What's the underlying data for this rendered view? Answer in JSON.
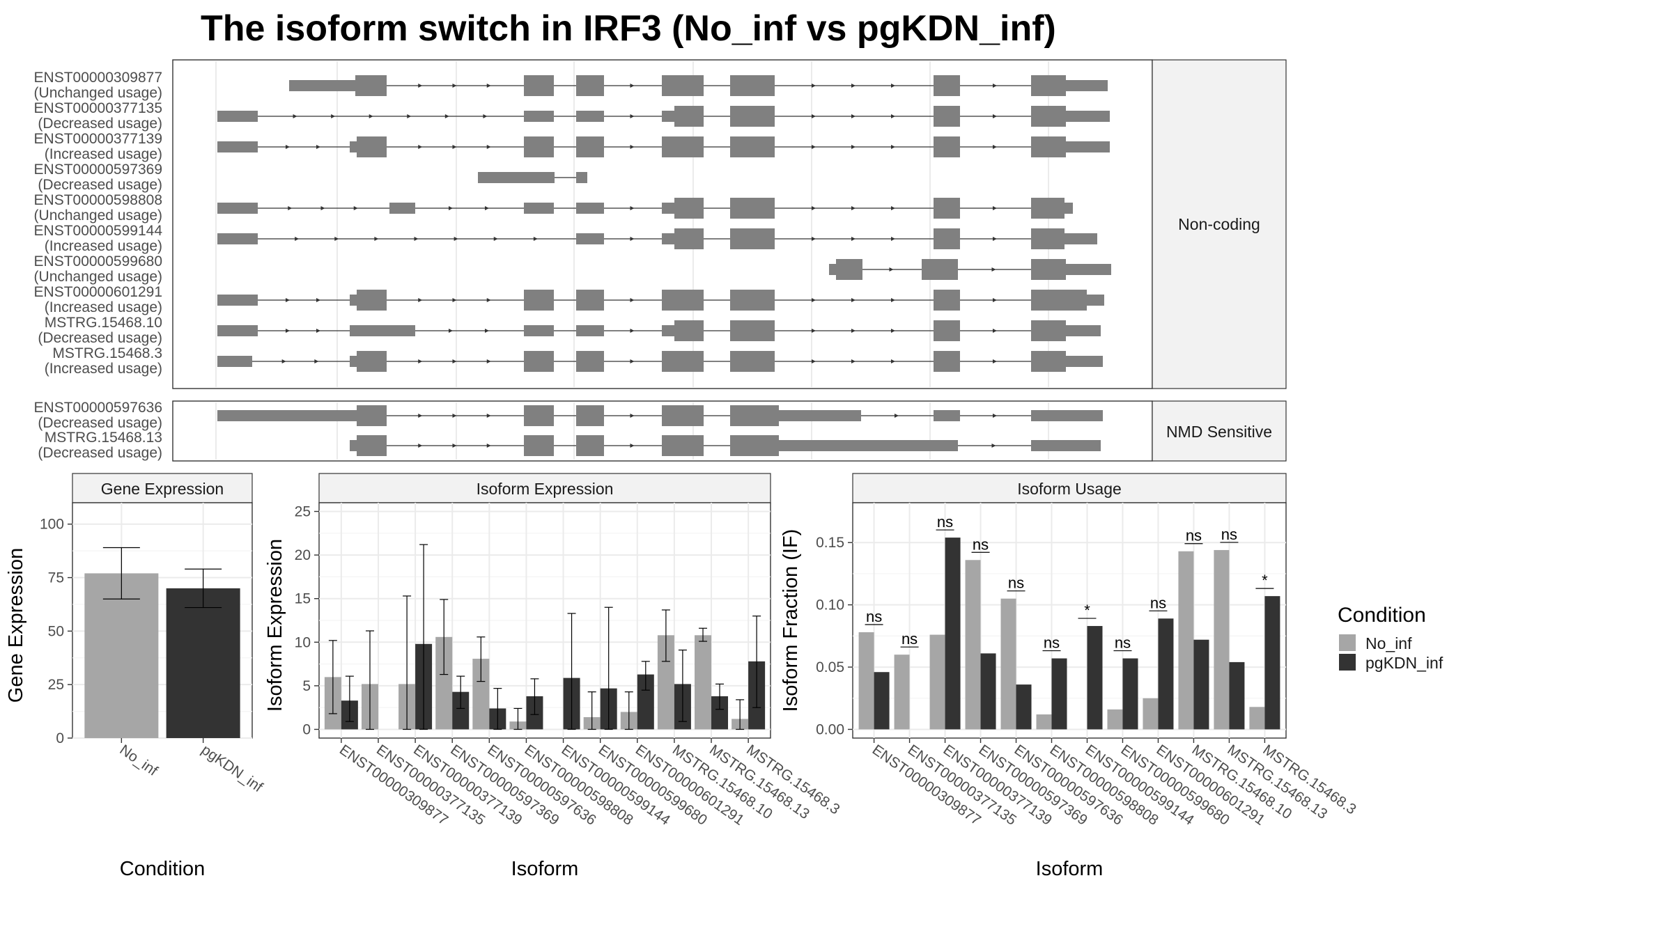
{
  "title": "The isoform switch in IRF3 (No_inf vs pgKDN_inf)",
  "colors": {
    "No_inf": "#a6a6a6",
    "pgKDN_inf": "#333333",
    "exon": "#808080"
  },
  "legend": {
    "title": "Condition",
    "items": [
      "No_inf",
      "pgKDN_inf"
    ]
  },
  "transcripts": {
    "facets": [
      "Non-coding",
      "NMD Sensitive"
    ],
    "tracks": [
      {
        "id": "ENST00000309877",
        "usage": "(Unchanged usage)",
        "facet": 0
      },
      {
        "id": "ENST00000377135",
        "usage": "(Decreased usage)",
        "facet": 0
      },
      {
        "id": "ENST00000377139",
        "usage": "(Increased usage)",
        "facet": 0
      },
      {
        "id": "ENST00000597369",
        "usage": "(Decreased usage)",
        "facet": 0
      },
      {
        "id": "ENST00000598808",
        "usage": "(Unchanged usage)",
        "facet": 0
      },
      {
        "id": "ENST00000599144",
        "usage": "(Increased usage)",
        "facet": 0
      },
      {
        "id": "ENST00000599680",
        "usage": "(Unchanged usage)",
        "facet": 0
      },
      {
        "id": "ENST00000601291",
        "usage": "(Increased usage)",
        "facet": 0
      },
      {
        "id": "MSTRG.15468.10",
        "usage": "(Decreased usage)",
        "facet": 0
      },
      {
        "id": "MSTRG.15468.3",
        "usage": "(Increased usage)",
        "facet": 0
      },
      {
        "id": "ENST00000597636",
        "usage": "(Decreased usage)",
        "facet": 1
      },
      {
        "id": "MSTRG.15468.13",
        "usage": "(Decreased usage)",
        "facet": 1
      }
    ]
  },
  "chart_data": [
    {
      "type": "bar",
      "title": "Gene Expression",
      "xlabel": "Condition",
      "ylabel": "Gene Expression",
      "ylim": [
        0,
        110
      ],
      "yticks": [
        0,
        25,
        50,
        75,
        100
      ],
      "categories": [
        "No_inf",
        "pgKDN_inf"
      ],
      "values": [
        77,
        70
      ],
      "errors": [
        [
          65,
          89
        ],
        [
          61,
          79
        ]
      ]
    },
    {
      "type": "bar",
      "title": "Isoform Expression",
      "xlabel": "Isoform",
      "ylabel": "Isoform Expression",
      "ylim": [
        -1,
        26
      ],
      "yticks": [
        0,
        5,
        10,
        15,
        20,
        25
      ],
      "categories": [
        "ENST00000309877",
        "ENST00000377135",
        "ENST00000377139",
        "ENST00000597369",
        "ENST00000597636",
        "ENST00000598808",
        "ENST00000599144",
        "ENST00000599680",
        "ENST00000601291",
        "MSTRG.15468.10",
        "MSTRG.15468.13",
        "MSTRG.15468.3"
      ],
      "series": [
        {
          "name": "No_inf",
          "values": [
            6.0,
            5.2,
            5.2,
            10.6,
            8.1,
            0.9,
            0.0,
            1.4,
            2.0,
            10.8,
            10.8,
            1.2
          ],
          "errors": [
            [
              1.8,
              10.2
            ],
            [
              0.0,
              11.3
            ],
            [
              0.0,
              15.3
            ],
            [
              6.3,
              14.9
            ],
            [
              5.5,
              10.6
            ],
            [
              0.0,
              2.4
            ],
            [
              0.0,
              0.0
            ],
            [
              0.0,
              4.3
            ],
            [
              0.0,
              4.3
            ],
            [
              7.8,
              13.7
            ],
            [
              10.1,
              11.6
            ],
            [
              0.0,
              3.4
            ]
          ]
        },
        {
          "name": "pgKDN_inf",
          "values": [
            3.3,
            0.0,
            9.8,
            4.3,
            2.4,
            3.8,
            5.9,
            4.7,
            6.3,
            5.2,
            3.8,
            7.8
          ],
          "errors": [
            [
              0.9,
              6.1
            ],
            [
              0.0,
              0.0
            ],
            [
              0.0,
              21.2
            ],
            [
              2.4,
              6.1
            ],
            [
              0.0,
              4.7
            ],
            [
              1.7,
              5.8
            ],
            [
              0.0,
              13.3
            ],
            [
              0.0,
              14.0
            ],
            [
              4.5,
              7.8
            ],
            [
              0.9,
              9.1
            ],
            [
              2.3,
              5.2
            ],
            [
              2.5,
              13.0
            ]
          ]
        }
      ]
    },
    {
      "type": "bar",
      "title": "Isoform Usage",
      "xlabel": "Isoform",
      "ylabel": "Isoform Fraction (IF)",
      "ylim": [
        -0.007,
        0.182
      ],
      "yticks": [
        0.0,
        0.05,
        0.1,
        0.15
      ],
      "yticklabels": [
        "0.00",
        "0.05",
        "0.10",
        "0.15"
      ],
      "categories": [
        "ENST00000309877",
        "ENST00000377135",
        "ENST00000377139",
        "ENST00000597369",
        "ENST00000597636",
        "ENST00000598808",
        "ENST00000599144",
        "ENST00000599680",
        "ENST00000601291",
        "MSTRG.15468.10",
        "MSTRG.15468.13",
        "MSTRG.15468.3"
      ],
      "series": [
        {
          "name": "No_inf",
          "values": [
            0.078,
            0.06,
            0.076,
            0.136,
            0.105,
            0.012,
            0.0,
            0.016,
            0.025,
            0.143,
            0.144,
            0.018
          ]
        },
        {
          "name": "pgKDN_inf",
          "values": [
            0.046,
            0.0,
            0.154,
            0.061,
            0.036,
            0.057,
            0.083,
            0.057,
            0.089,
            0.072,
            0.054,
            0.107
          ]
        }
      ],
      "significance": [
        "ns",
        "ns",
        "ns",
        "ns",
        "ns",
        "ns",
        "*",
        "ns",
        "ns",
        "ns",
        "ns",
        "*"
      ]
    }
  ]
}
